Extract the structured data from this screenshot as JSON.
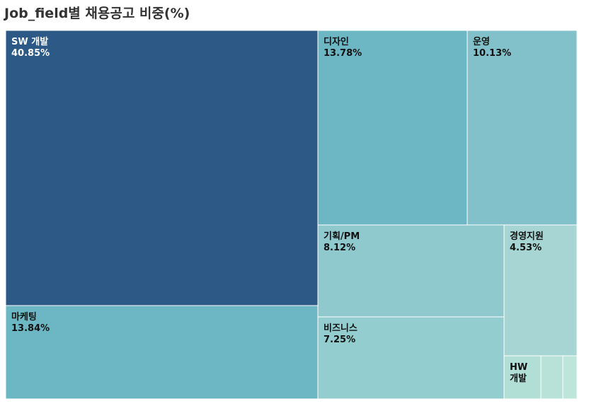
{
  "chart_data": {
    "type": "treemap",
    "title": "Job_field별 채용공고 비중(%)",
    "categories": [
      "SW 개발",
      "마케팅",
      "디자인",
      "운영",
      "기획/PM",
      "비즈니스",
      "경영지원",
      "HW 개발",
      "",
      ""
    ],
    "values": [
      40.85,
      13.84,
      13.78,
      10.13,
      8.12,
      7.25,
      4.53,
      1.5,
      0.5,
      0.5
    ],
    "value_labels": [
      "40.85%",
      "13.84%",
      "13.78%",
      "10.13%",
      "8.12%",
      "7.25%",
      "4.53%",
      "",
      "",
      ""
    ],
    "colors": [
      "#2c5985",
      "#6db7c4",
      "#6db7c4",
      "#82c1ca",
      "#8fc9ce",
      "#94cdcf",
      "#a6d5d3",
      "#b2dfd5",
      "#b8e2d8",
      "#bde5da"
    ],
    "text_colors": [
      "#ffffff",
      "#111111",
      "#111111",
      "#111111",
      "#111111",
      "#111111",
      "#111111",
      "#111111",
      "#111111",
      "#111111"
    ]
  }
}
